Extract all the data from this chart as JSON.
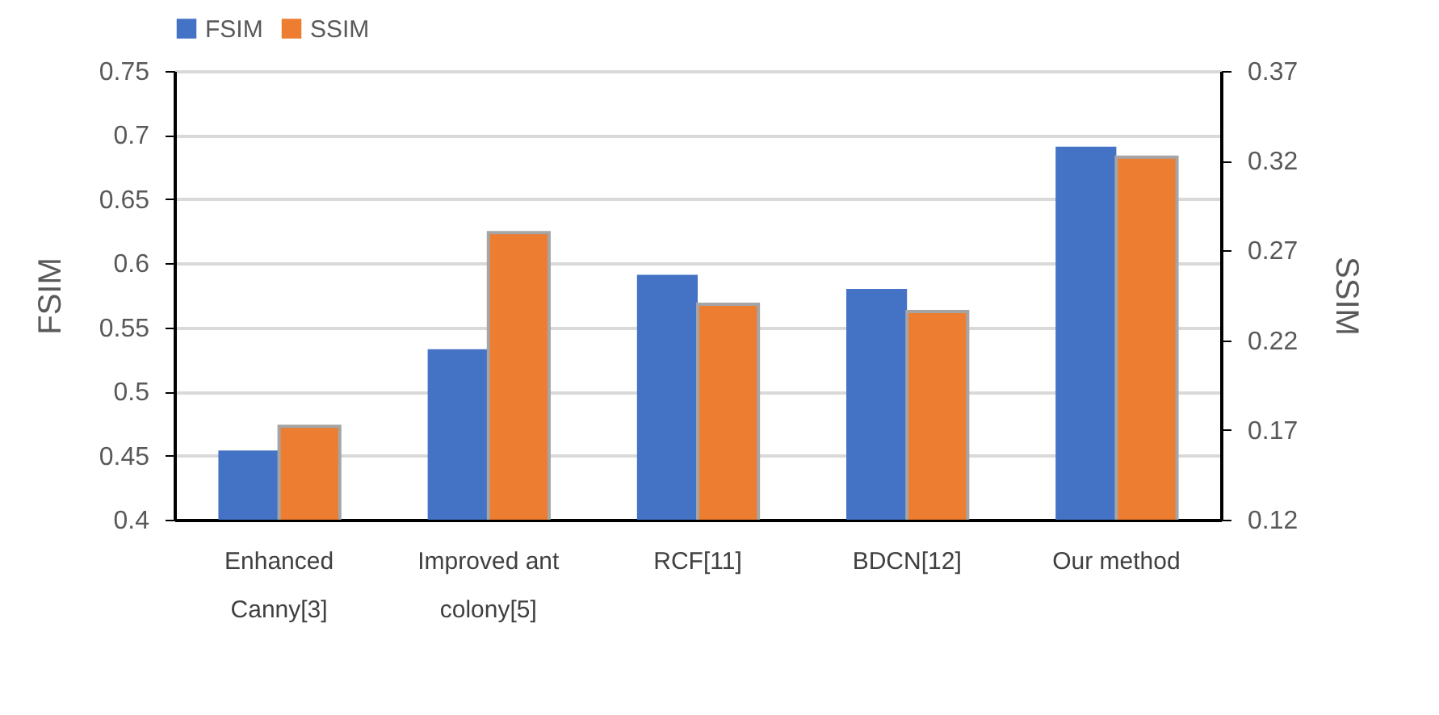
{
  "chart_data": {
    "type": "bar",
    "ylabel": "FSIM",
    "y2label": "SSIM",
    "categories": [
      "Enhanced Canny[3]",
      "Improved ant colony[5]",
      "RCF[11]",
      "BDCN[12]",
      "Our method"
    ],
    "series": [
      {
        "name": "FSIM",
        "color": "#4472c4",
        "values": [
          0.454,
          0.533,
          0.591,
          0.58,
          0.691
        ]
      },
      {
        "name": "SSIM",
        "color": "#ed7d31",
        "axis": "y2",
        "values": [
          0.172,
          0.28,
          0.24,
          0.236,
          0.322
        ]
      }
    ],
    "ylim": [
      0.4,
      0.75
    ],
    "yticks": [
      0.4,
      0.45,
      0.5,
      0.55,
      0.6,
      0.65,
      0.7,
      0.75
    ],
    "y2lim": [
      0.12,
      0.37
    ],
    "y2ticks": [
      0.12,
      0.17,
      0.22,
      0.27,
      0.32,
      0.37
    ],
    "grid": "y",
    "legend": "top"
  }
}
